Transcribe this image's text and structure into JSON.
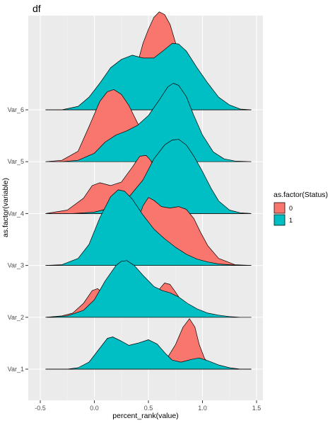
{
  "chart_data": {
    "type": "ridgeline",
    "title": "df",
    "xlabel": "percent_rank(value)",
    "ylabel": "as.factor(variable)",
    "xlim": [
      -0.5,
      1.5
    ],
    "x_ticks": [
      -0.5,
      0.0,
      0.5,
      1.0,
      1.5
    ],
    "x_tick_labels": [
      "-0.5",
      "0.0",
      "0.5",
      "1.0",
      "1.5"
    ],
    "categories": [
      "Var_1",
      "Var_2",
      "Var_3",
      "Var_4",
      "Var_5",
      "Var_6"
    ],
    "legend": {
      "title": "as.factor(Status)",
      "position": "right",
      "entries": [
        {
          "label": "0",
          "color": "#f8766d"
        },
        {
          "label": "1",
          "color": "#00bfc4"
        }
      ]
    },
    "grid": true,
    "ridge_scale": 1.35,
    "series": [
      {
        "group": "Var_1",
        "status": "0",
        "color": "#f8766d",
        "range": [
          -0.45,
          1.45
        ],
        "x": [
          -0.45,
          0.2,
          0.55,
          0.65,
          0.75,
          0.82,
          0.88,
          0.93,
          0.97,
          1.02,
          1.08,
          1.15,
          1.25,
          1.45
        ],
        "y": [
          0.0,
          0.0,
          0.02,
          0.1,
          0.35,
          0.6,
          0.72,
          0.6,
          0.35,
          0.15,
          0.05,
          0.01,
          0.0,
          0.0
        ]
      },
      {
        "group": "Var_1",
        "status": "1",
        "color": "#00bfc4",
        "range": [
          -0.45,
          1.45
        ],
        "x": [
          -0.45,
          -0.25,
          -0.15,
          -0.05,
          0.05,
          0.12,
          0.17,
          0.25,
          0.32,
          0.4,
          0.5,
          0.58,
          0.66,
          0.72,
          0.8,
          0.9,
          0.97,
          1.05,
          1.15,
          1.25,
          1.35,
          1.45
        ],
        "y": [
          0.0,
          0.0,
          0.02,
          0.1,
          0.3,
          0.44,
          0.46,
          0.4,
          0.34,
          0.37,
          0.42,
          0.36,
          0.22,
          0.13,
          0.1,
          0.14,
          0.16,
          0.12,
          0.06,
          0.02,
          0.0,
          0.0
        ]
      },
      {
        "group": "Var_2",
        "status": "0",
        "color": "#f8766d",
        "range": [
          -0.45,
          1.45
        ],
        "x": [
          -0.45,
          -0.3,
          -0.2,
          -0.1,
          -0.02,
          0.03,
          0.08,
          0.15,
          0.3,
          0.45,
          0.55,
          0.6,
          0.65,
          0.7,
          0.75,
          0.82,
          0.9,
          1.0,
          1.1,
          1.2,
          1.3,
          1.45
        ],
        "y": [
          0.0,
          0.02,
          0.06,
          0.2,
          0.38,
          0.41,
          0.34,
          0.16,
          0.04,
          0.05,
          0.2,
          0.4,
          0.49,
          0.47,
          0.36,
          0.2,
          0.1,
          0.05,
          0.02,
          0.01,
          0.0,
          0.0
        ]
      },
      {
        "group": "Var_2",
        "status": "1",
        "color": "#00bfc4",
        "range": [
          -0.45,
          1.45
        ],
        "x": [
          -0.45,
          -0.25,
          -0.1,
          0.0,
          0.1,
          0.2,
          0.25,
          0.3,
          0.37,
          0.45,
          0.55,
          0.63,
          0.7,
          0.78,
          0.86,
          0.95,
          1.05,
          1.15,
          1.25,
          1.35,
          1.45
        ],
        "y": [
          0.0,
          0.02,
          0.1,
          0.25,
          0.52,
          0.74,
          0.8,
          0.81,
          0.74,
          0.6,
          0.44,
          0.38,
          0.35,
          0.29,
          0.2,
          0.12,
          0.06,
          0.03,
          0.01,
          0.0,
          0.0
        ]
      },
      {
        "group": "Var_3",
        "status": "0",
        "color": "#f8766d",
        "range": [
          -0.45,
          1.45
        ],
        "x": [
          -0.45,
          -0.2,
          0.0,
          0.15,
          0.3,
          0.38,
          0.45,
          0.5,
          0.55,
          0.62,
          0.7,
          0.78,
          0.85,
          0.92,
          0.98,
          1.05,
          1.15,
          1.3,
          1.45
        ],
        "y": [
          0.0,
          0.0,
          0.02,
          0.1,
          0.3,
          0.55,
          0.85,
          0.97,
          0.93,
          0.84,
          0.82,
          0.84,
          0.8,
          0.67,
          0.48,
          0.28,
          0.1,
          0.01,
          0.0
        ]
      },
      {
        "group": "Var_3",
        "status": "1",
        "color": "#00bfc4",
        "range": [
          -0.45,
          1.45
        ],
        "x": [
          -0.45,
          -0.3,
          -0.15,
          -0.05,
          0.05,
          0.15,
          0.22,
          0.28,
          0.35,
          0.45,
          0.55,
          0.65,
          0.75,
          0.85,
          0.95,
          1.05,
          1.15,
          1.25,
          1.35,
          1.45
        ],
        "y": [
          0.0,
          0.01,
          0.1,
          0.3,
          0.68,
          0.98,
          1.08,
          1.06,
          0.95,
          0.72,
          0.52,
          0.38,
          0.26,
          0.16,
          0.09,
          0.05,
          0.02,
          0.01,
          0.0,
          0.0
        ]
      },
      {
        "group": "Var_4",
        "status": "0",
        "color": "#f8766d",
        "range": [
          -0.45,
          1.45
        ],
        "x": [
          -0.45,
          -0.25,
          -0.1,
          -0.02,
          0.05,
          0.15,
          0.25,
          0.35,
          0.42,
          0.48,
          0.52,
          0.6,
          0.7,
          0.8,
          0.9,
          1.0,
          1.1,
          1.2,
          1.3,
          1.45
        ],
        "y": [
          0.0,
          0.05,
          0.22,
          0.4,
          0.44,
          0.4,
          0.45,
          0.66,
          0.82,
          0.83,
          0.76,
          0.55,
          0.45,
          0.4,
          0.35,
          0.28,
          0.18,
          0.07,
          0.01,
          0.0
        ]
      },
      {
        "group": "Var_4",
        "status": "1",
        "color": "#00bfc4",
        "range": [
          -0.45,
          1.45
        ],
        "x": [
          -0.45,
          -0.2,
          0.0,
          0.15,
          0.3,
          0.45,
          0.55,
          0.65,
          0.72,
          0.78,
          0.85,
          0.92,
          1.0,
          1.08,
          1.15,
          1.25,
          1.35,
          1.45
        ],
        "y": [
          0.0,
          0.0,
          0.02,
          0.08,
          0.2,
          0.48,
          0.78,
          0.98,
          1.05,
          1.06,
          0.98,
          0.82,
          0.6,
          0.36,
          0.18,
          0.05,
          0.01,
          0.0
        ]
      },
      {
        "group": "Var_5",
        "status": "0",
        "color": "#f8766d",
        "range": [
          -0.45,
          1.45
        ],
        "x": [
          -0.45,
          -0.3,
          -0.15,
          -0.05,
          0.05,
          0.12,
          0.18,
          0.25,
          0.32,
          0.4,
          0.48,
          0.55,
          0.65,
          0.75,
          0.85,
          1.0,
          1.15,
          1.3,
          1.45
        ],
        "y": [
          0.0,
          0.02,
          0.15,
          0.5,
          0.86,
          1.0,
          1.03,
          0.96,
          0.8,
          0.55,
          0.35,
          0.22,
          0.12,
          0.08,
          0.06,
          0.04,
          0.02,
          0.0,
          0.0
        ]
      },
      {
        "group": "Var_5",
        "status": "1",
        "color": "#00bfc4",
        "range": [
          -0.45,
          1.45
        ],
        "x": [
          -0.45,
          -0.3,
          -0.15,
          0.0,
          0.1,
          0.2,
          0.3,
          0.4,
          0.5,
          0.6,
          0.68,
          0.73,
          0.78,
          0.85,
          0.92,
          1.0,
          1.1,
          1.2,
          1.3,
          1.45
        ],
        "y": [
          0.0,
          0.0,
          0.02,
          0.12,
          0.28,
          0.38,
          0.44,
          0.52,
          0.66,
          0.88,
          1.07,
          1.12,
          1.09,
          0.93,
          0.66,
          0.38,
          0.14,
          0.04,
          0.01,
          0.0
        ]
      },
      {
        "group": "Var_6",
        "status": "0",
        "color": "#f8766d",
        "range": [
          -0.45,
          1.45
        ],
        "x": [
          -0.45,
          0.0,
          0.2,
          0.3,
          0.38,
          0.45,
          0.5,
          0.55,
          0.6,
          0.65,
          0.7,
          0.75,
          0.8,
          0.88,
          0.95,
          1.05,
          1.45
        ],
        "y": [
          0.0,
          0.0,
          0.02,
          0.12,
          0.55,
          0.95,
          1.15,
          1.32,
          1.4,
          1.36,
          1.22,
          0.96,
          0.62,
          0.25,
          0.08,
          0.01,
          0.0
        ]
      },
      {
        "group": "Var_6",
        "status": "1",
        "color": "#00bfc4",
        "range": [
          -0.45,
          1.45
        ],
        "x": [
          -0.45,
          -0.3,
          -0.15,
          -0.05,
          0.05,
          0.15,
          0.25,
          0.35,
          0.45,
          0.55,
          0.65,
          0.72,
          0.78,
          0.85,
          0.95,
          1.05,
          1.15,
          1.25,
          1.35,
          1.45
        ],
        "y": [
          0.0,
          0.0,
          0.05,
          0.18,
          0.38,
          0.6,
          0.72,
          0.78,
          0.74,
          0.74,
          0.86,
          0.95,
          0.94,
          0.84,
          0.6,
          0.38,
          0.18,
          0.07,
          0.01,
          0.0
        ]
      }
    ]
  }
}
